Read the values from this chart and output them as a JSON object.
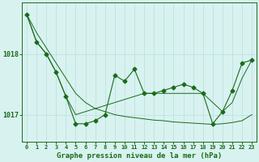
{
  "title": "Graphe pression niveau de la mer (hPa)",
  "x_values": [
    0,
    1,
    2,
    3,
    4,
    5,
    6,
    7,
    8,
    9,
    10,
    11,
    12,
    13,
    14,
    15,
    16,
    17,
    18,
    19,
    20,
    21,
    22,
    23
  ],
  "y_main": [
    1018.65,
    1018.2,
    1018.0,
    1017.7,
    1017.3,
    1016.85,
    1016.85,
    1016.9,
    1017.0,
    1017.65,
    1017.55,
    1017.75,
    1017.35,
    1017.35,
    1017.4,
    1017.45,
    1017.5,
    1017.45,
    1017.35,
    1016.85,
    1017.05,
    1017.4,
    1017.85,
    1017.9
  ],
  "y_trend1": [
    1018.65,
    1018.2,
    1018.0,
    1017.7,
    1017.3,
    1017.0,
    1017.05,
    1017.1,
    1017.15,
    1017.2,
    1017.25,
    1017.3,
    1017.35,
    1017.35,
    1017.35,
    1017.35,
    1017.35,
    1017.35,
    1017.35,
    1017.2,
    1017.05,
    1017.2,
    1017.6,
    1017.9
  ],
  "y_trend2": [
    1018.65,
    1018.35,
    1018.1,
    1017.85,
    1017.6,
    1017.35,
    1017.2,
    1017.1,
    1017.05,
    1017.0,
    1016.97,
    1016.95,
    1016.93,
    1016.91,
    1016.9,
    1016.88,
    1016.87,
    1016.86,
    1016.85,
    1016.84,
    1016.85,
    1016.87,
    1016.9,
    1017.0
  ],
  "yticks": [
    1017,
    1018
  ],
  "ylim": [
    1016.55,
    1018.85
  ],
  "xlim": [
    -0.5,
    23.5
  ],
  "line_color": "#1a6b1a",
  "bg_color": "#d8f2f0",
  "grid_color": "#b8dede",
  "axis_color": "#1a6b1a",
  "title_color": "#1a6b1a",
  "title_fontsize": 6.5,
  "marker_size": 2.5,
  "tick_fontsize": 5.0,
  "ytick_fontsize": 6.0
}
